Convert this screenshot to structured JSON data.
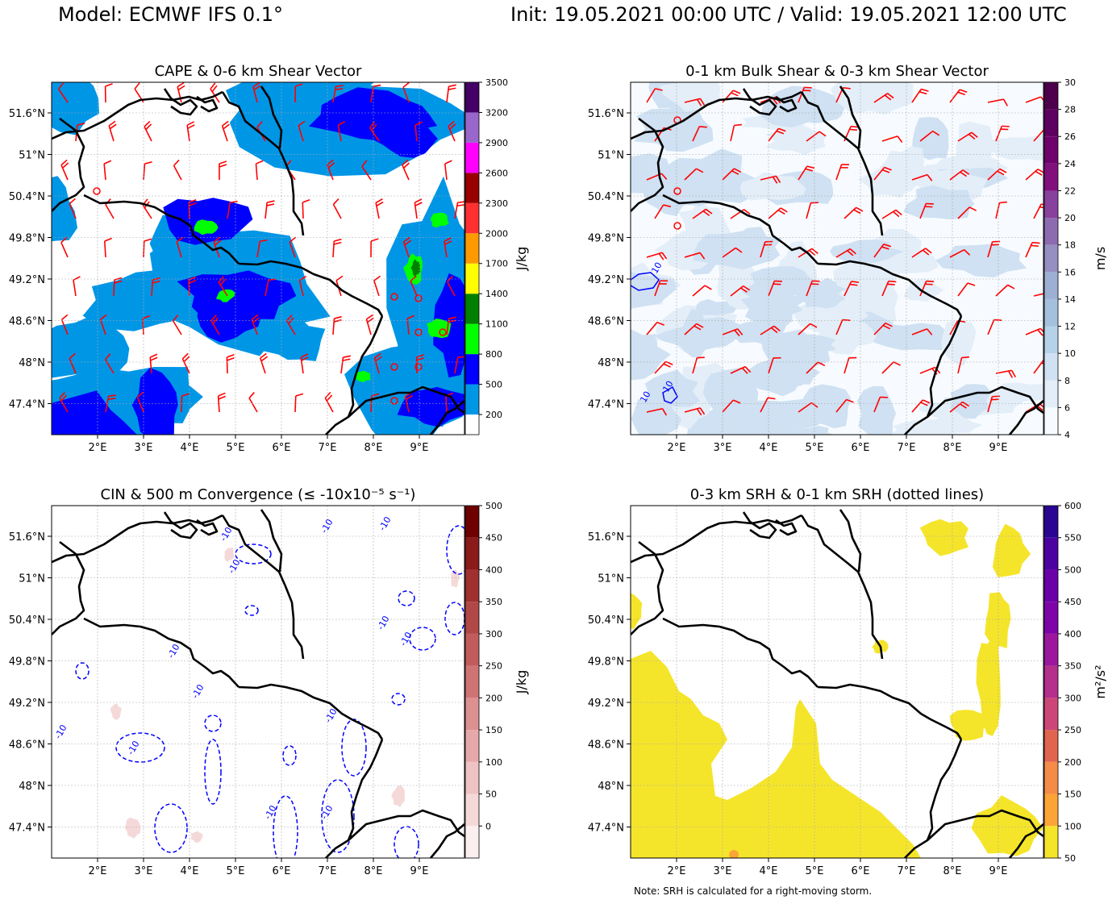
{
  "suptitle": {
    "left": "Model: ECMWF IFS 0.1°",
    "right": "Init: 19.05.2021 00:00 UTC / Valid: 19.05.2021 12:00 UTC"
  },
  "note": "Note: SRH is calculated for a right-moving storm.",
  "chart_data": [
    {
      "type": "heatmap",
      "title": "CAPE & 0-6 km Shear Vector",
      "x_ticks": [
        "2°E",
        "3°E",
        "4°E",
        "5°E",
        "6°E",
        "7°E",
        "8°E",
        "9°E"
      ],
      "y_ticks": [
        "51.6°N",
        "51°N",
        "50.4°N",
        "49.8°N",
        "49.2°N",
        "48.6°N",
        "48°N",
        "47.4°N"
      ],
      "colorbar": {
        "label": "J/kg",
        "ticks": [
          200,
          500,
          800,
          1100,
          1400,
          1700,
          2000,
          2300,
          2600,
          2900,
          3200,
          3500
        ],
        "levels": [
          0,
          200,
          500,
          800,
          1100,
          1400,
          1700,
          2000,
          2300,
          2600,
          2900,
          3200,
          3500
        ],
        "colors": [
          "#ffffff",
          "#0096e6",
          "#0000ff",
          "#00ff00",
          "#008000",
          "#ffff00",
          "#ff9900",
          "#ff3030",
          "#990000",
          "#ff00ff",
          "#9966cc",
          "#440066"
        ]
      },
      "overlays": "0-6 km shear vector barbs (red); storm markers (red circles)"
    },
    {
      "type": "heatmap",
      "title": "0-1 km Bulk Shear & 0-3 km Shear Vector",
      "x_ticks": [
        "2°E",
        "3°E",
        "4°E",
        "5°E",
        "6°E",
        "7°E",
        "8°E",
        "9°E"
      ],
      "y_ticks": [
        "51.6°N",
        "51°N",
        "50.4°N",
        "49.8°N",
        "49.2°N",
        "48.6°N",
        "48°N",
        "47.4°N"
      ],
      "contour_labels": [
        "10",
        "10",
        "10"
      ],
      "colorbar": {
        "label": "m/s",
        "ticks": [
          4,
          6,
          8,
          10,
          12,
          14,
          16,
          18,
          20,
          22,
          24,
          26,
          28,
          30
        ],
        "levels": [
          4,
          6,
          8,
          10,
          12,
          14,
          16,
          18,
          20,
          22,
          24,
          26,
          28,
          30
        ],
        "colors": [
          "#f7fbff",
          "#e3eef8",
          "#cfe1f2",
          "#b5d2e8",
          "#a5c0dc",
          "#9dafd3",
          "#968fc2",
          "#8c6bb1",
          "#88419d",
          "#810f7c",
          "#6e016b",
          "#5e0060",
          "#4d004b"
        ]
      },
      "overlays": "0-3 km shear vector barbs (red); 10 m/s contour (blue)"
    },
    {
      "type": "heatmap",
      "title": "CIN & 500 m Convergence (≤ -10x10⁻⁵ s⁻¹)",
      "x_ticks": [
        "2°E",
        "3°E",
        "4°E",
        "5°E",
        "6°E",
        "7°E",
        "8°E",
        "9°E"
      ],
      "y_ticks": [
        "51.6°N",
        "51°N",
        "50.4°N",
        "49.8°N",
        "49.2°N",
        "48.6°N",
        "48°N",
        "47.4°N"
      ],
      "contour_labels": [
        "-10",
        "-10",
        "-10",
        "-10",
        "-10",
        "-10",
        "-10",
        "-10",
        "-10",
        "-10",
        "-10",
        "-10",
        "-10"
      ],
      "colorbar": {
        "label": "J/kg",
        "ticks": [
          0,
          50,
          100,
          150,
          200,
          250,
          300,
          350,
          400,
          450,
          500
        ],
        "levels": [
          -50,
          0,
          50,
          100,
          150,
          200,
          250,
          300,
          350,
          400,
          450,
          500
        ],
        "colors": [
          "#fbefef",
          "#f5d9d9",
          "#eec3c3",
          "#e6a9a9",
          "#dc9090",
          "#cf7474",
          "#c15c5c",
          "#b14747",
          "#a03030",
          "#8b1a1a",
          "#6e0000"
        ]
      },
      "overlays": "500 m convergence -10 contours (blue dashed)"
    },
    {
      "type": "heatmap",
      "title": "0-3 km SRH & 0-1 km SRH (dotted lines)",
      "x_ticks": [
        "2°E",
        "3°E",
        "4°E",
        "5°E",
        "6°E",
        "7°E",
        "8°E",
        "9°E"
      ],
      "y_ticks": [
        "51.6°N",
        "51°N",
        "50.4°N",
        "49.8°N",
        "49.2°N",
        "48.6°N",
        "48°N",
        "47.4°N"
      ],
      "colorbar": {
        "label": "m²/s²",
        "ticks": [
          50,
          100,
          150,
          200,
          250,
          300,
          350,
          400,
          450,
          500,
          550,
          600
        ],
        "levels": [
          50,
          100,
          150,
          200,
          250,
          300,
          350,
          400,
          450,
          500,
          550,
          600
        ],
        "colors": [
          "#f5e52a",
          "#fca537",
          "#f58b48",
          "#e1644f",
          "#cc4778",
          "#b52f8c",
          "#9c179e",
          "#7e03a8",
          "#6a00a8",
          "#4c02a1",
          "#2a0593"
        ]
      }
    }
  ]
}
